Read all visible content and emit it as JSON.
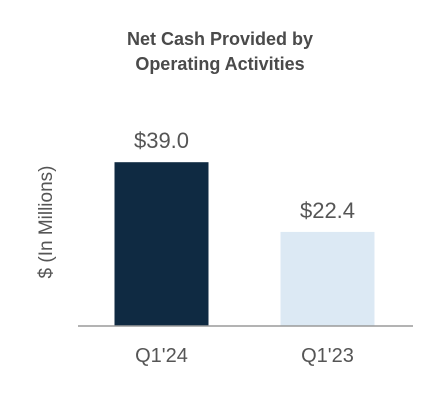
{
  "chart_data": {
    "type": "bar",
    "title_lines": [
      "Net Cash Provided by",
      "Operating Activities"
    ],
    "ylabel": "$ (In Millions)",
    "xlabel": "",
    "categories": [
      "Q1'24",
      "Q1'23"
    ],
    "values": [
      39.0,
      22.4
    ],
    "data_labels": [
      "$39.0",
      "$22.4"
    ],
    "ylim": [
      0,
      40
    ],
    "grid": false,
    "legend": "none",
    "bar_colors": [
      "#0f2a42",
      "#dce9f4"
    ],
    "axis_color": "#9a9a9a",
    "title_color": "#4a4a4a",
    "label_color": "#555555"
  }
}
